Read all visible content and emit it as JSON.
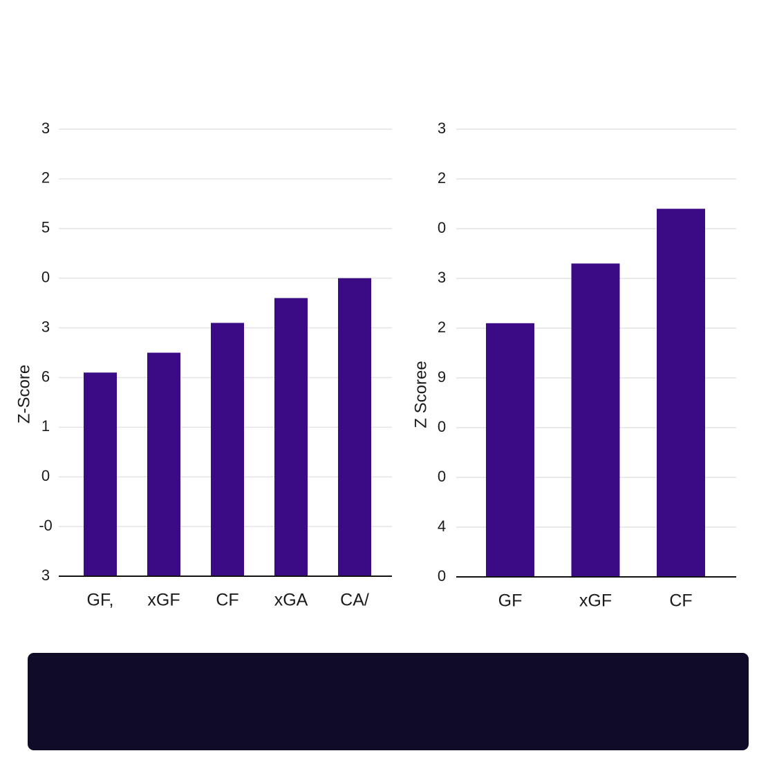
{
  "chart_data": [
    {
      "type": "bar",
      "y_label": "Z-Score",
      "categories": [
        "GF,",
        "xGF",
        "CF",
        "xGA",
        "CA/"
      ],
      "values": [
        4.1,
        4.5,
        5.1,
        5.6,
        6.0
      ],
      "color": "#3b0b86",
      "ylim": [
        0,
        9
      ],
      "yticks": [
        {
          "value": 0,
          "label": "3"
        },
        {
          "value": 1,
          "label": "-0"
        },
        {
          "value": 2,
          "label": "0"
        },
        {
          "value": 3,
          "label": "1"
        },
        {
          "value": 4,
          "label": "6"
        },
        {
          "value": 5,
          "label": "3"
        },
        {
          "value": 6,
          "label": "0"
        },
        {
          "value": 7,
          "label": "5"
        },
        {
          "value": 8,
          "label": "2"
        },
        {
          "value": 9,
          "label": "3"
        }
      ],
      "grid": true
    },
    {
      "type": "bar",
      "y_label": "Z Scoree",
      "categories": [
        "GF",
        "xGF",
        "CF"
      ],
      "values": [
        5.1,
        6.3,
        7.4
      ],
      "color": "#3b0b86",
      "ylim": [
        0,
        9
      ],
      "yticks": [
        0,
        {
          "value": 1,
          "label": "4"
        },
        {
          "value": 2,
          "label": "0"
        },
        {
          "value": 3,
          "label": "0"
        },
        {
          "value": 4,
          "label": "9"
        },
        {
          "value": 5,
          "label": "2"
        },
        {
          "value": 6,
          "label": "3"
        },
        {
          "value": 7,
          "label": "0"
        },
        {
          "value": 8,
          "label": "2"
        },
        {
          "value": 9,
          "label": "3"
        }
      ],
      "grid": true
    }
  ]
}
